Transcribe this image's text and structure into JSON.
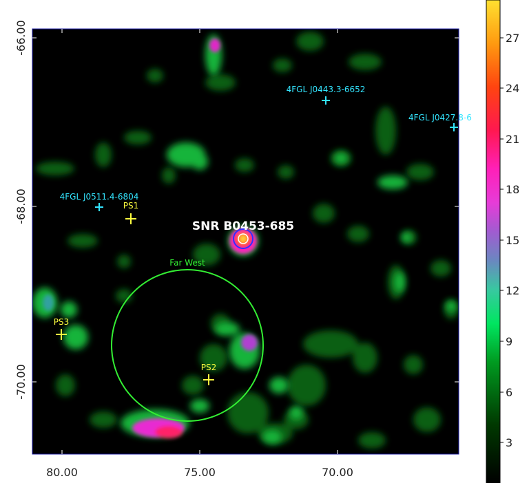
{
  "x_axis": {
    "ticks": [
      "80.00",
      "75.00",
      "70.00"
    ]
  },
  "y_axis": {
    "ticks": [
      "-66.00",
      "-68.00",
      "-70.00"
    ]
  },
  "colorbar": {
    "ticks": [
      "3",
      "6",
      "9",
      "12",
      "15",
      "18",
      "21",
      "24",
      "27"
    ],
    "colors": [
      "#000000",
      "#005a00",
      "#00d44a",
      "#3fc8a0",
      "#a45fd0",
      "#ff2bd2",
      "#ff1858",
      "#ff6a00",
      "#ffd21f"
    ]
  },
  "sources": [
    {
      "label": "4FGL J0443.3-6652",
      "color": "#33e5ff"
    },
    {
      "label": "4FGL J0427.8-6",
      "color": "#33e5ff"
    },
    {
      "label": "4FGL J0511.4-6804",
      "color": "#33e5ff"
    },
    {
      "label": "PS1",
      "color": "#ffff40"
    },
    {
      "label": "PS2",
      "color": "#ffff40"
    },
    {
      "label": "PS3",
      "color": "#ffff40"
    }
  ],
  "snr": {
    "label": "SNR B0453-685"
  },
  "region": {
    "label": "Far West",
    "color": "#33ee33"
  }
}
